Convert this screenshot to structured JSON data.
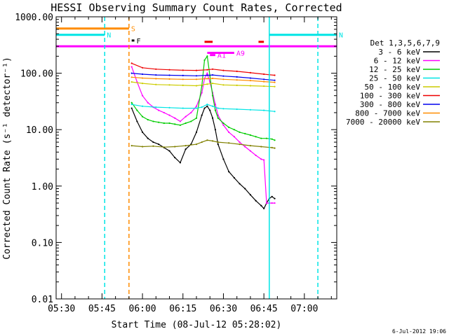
{
  "chart_data": {
    "type": "line",
    "title": "HESSI Observing Summary Count Rates, Corrected",
    "xlabel": "Start Time (08-Jul-12 05:28:02)",
    "ylabel": "Corrected Count Rate (s⁻¹ detector⁻¹)",
    "date_stamp": "6-Jul-2012 19:06",
    "yscale": "log",
    "ylim": [
      0.01,
      1000
    ],
    "xlim": [
      "05:28",
      "07:12"
    ],
    "x_ticks": [
      "05:30",
      "05:45",
      "06:00",
      "06:15",
      "06:30",
      "06:45",
      "07:00"
    ],
    "y_ticks": [
      "0.01",
      "0.10",
      "1.00",
      "10.00",
      "100.00",
      "1000.00"
    ],
    "legend_title": "Det 1,3,5,6,7,9",
    "legend_position": "right",
    "series": [
      {
        "name": "3 - 6 keV",
        "color": "#000000",
        "x": [
          "05:56",
          "05:58",
          "06:00",
          "06:02",
          "06:04",
          "06:06",
          "06:08",
          "06:10",
          "06:12",
          "06:14",
          "06:16",
          "06:18",
          "06:20",
          "06:22",
          "06:23",
          "06:24",
          "06:25",
          "06:26",
          "06:27",
          "06:28",
          "06:30",
          "06:32",
          "06:34",
          "06:36",
          "06:38",
          "06:40",
          "06:42",
          "06:44",
          "06:45",
          "06:46",
          "06:47",
          "06:48",
          "06:49"
        ],
        "y": [
          24,
          14,
          9,
          7,
          6,
          5.5,
          4.8,
          4.2,
          3.2,
          2.6,
          4.5,
          5.5,
          9,
          18,
          24,
          26,
          22,
          16,
          10,
          5.5,
          3,
          1.8,
          1.4,
          1.1,
          0.9,
          0.7,
          0.55,
          0.45,
          0.4,
          0.5,
          0.6,
          0.65,
          0.6
        ]
      },
      {
        "name": "6 - 12 keV",
        "color": "#ff00ff",
        "x": [
          "05:56",
          "05:58",
          "06:00",
          "06:02",
          "06:04",
          "06:06",
          "06:08",
          "06:10",
          "06:12",
          "06:14",
          "06:16",
          "06:18",
          "06:20",
          "06:22",
          "06:23",
          "06:24",
          "06:25",
          "06:26",
          "06:27",
          "06:28",
          "06:30",
          "06:32",
          "06:34",
          "06:36",
          "06:38",
          "06:40",
          "06:42",
          "06:44",
          "06:45",
          "06:46",
          "06:47",
          "06:48",
          "06:49"
        ],
        "y": [
          130,
          70,
          40,
          30,
          25,
          22,
          20,
          18,
          16,
          14,
          17,
          20,
          26,
          45,
          80,
          100,
          70,
          45,
          28,
          18,
          12,
          9,
          7.5,
          6,
          5,
          4.2,
          3.5,
          3,
          2.9,
          0.5,
          0.5,
          0.5,
          0.5
        ]
      },
      {
        "name": "12 - 25 keV",
        "color": "#00cc00",
        "x": [
          "05:56",
          "05:58",
          "06:00",
          "06:02",
          "06:04",
          "06:06",
          "06:08",
          "06:10",
          "06:12",
          "06:14",
          "06:16",
          "06:18",
          "06:20",
          "06:22",
          "06:23",
          "06:24",
          "06:25",
          "06:26",
          "06:27",
          "06:28",
          "06:30",
          "06:32",
          "06:34",
          "06:36",
          "06:38",
          "06:40",
          "06:42",
          "06:44",
          "06:46",
          "06:48",
          "06:49"
        ],
        "y": [
          30,
          22,
          17,
          15,
          14,
          13.5,
          13,
          13,
          12.5,
          12,
          13,
          14,
          16,
          60,
          170,
          200,
          90,
          40,
          22,
          16,
          13,
          11,
          10,
          9,
          8.5,
          8,
          7.5,
          7,
          7,
          6.8,
          6.5
        ]
      },
      {
        "name": "25 - 50 keV",
        "color": "#00e5e5",
        "x": [
          "05:56",
          "06:00",
          "06:05",
          "06:10",
          "06:15",
          "06:20",
          "06:22",
          "06:24",
          "06:26",
          "06:28",
          "06:30",
          "06:35",
          "06:40",
          "06:45",
          "06:49"
        ],
        "y": [
          28,
          26,
          25,
          24.5,
          24,
          24,
          25,
          28,
          26,
          24,
          23.5,
          23,
          22.5,
          22,
          21
        ]
      },
      {
        "name": "50 - 100 keV",
        "color": "#cccc00",
        "x": [
          "05:56",
          "06:00",
          "06:05",
          "06:10",
          "06:15",
          "06:20",
          "06:24",
          "06:26",
          "06:30",
          "06:35",
          "06:40",
          "06:45",
          "06:49"
        ],
        "y": [
          70,
          66,
          63,
          62,
          61,
          60,
          64,
          66,
          62,
          61,
          60,
          59,
          58
        ]
      },
      {
        "name": "100 - 300 keV",
        "color": "#ee0000",
        "x": [
          "05:56",
          "06:00",
          "06:05",
          "06:10",
          "06:15",
          "06:20",
          "06:24",
          "06:26",
          "06:30",
          "06:35",
          "06:40",
          "06:45",
          "06:49"
        ],
        "y": [
          150,
          125,
          118,
          115,
          113,
          112,
          115,
          118,
          112,
          108,
          102,
          96,
          92
        ]
      },
      {
        "name": "300 - 800 keV",
        "color": "#0000ee",
        "x": [
          "05:56",
          "06:00",
          "06:05",
          "06:10",
          "06:15",
          "06:20",
          "06:24",
          "06:26",
          "06:30",
          "06:35",
          "06:40",
          "06:45",
          "06:49"
        ],
        "y": [
          100,
          96,
          93,
          92,
          91,
          90,
          92,
          93,
          89,
          86,
          82,
          78,
          75
        ]
      },
      {
        "name": "800 - 7000 keV",
        "color": "#ff8c00",
        "x": [
          "05:56",
          "06:00",
          "06:05",
          "06:10",
          "06:15",
          "06:20",
          "06:24",
          "06:26",
          "06:30",
          "06:35",
          "06:40",
          "06:45",
          "06:49"
        ],
        "y": [
          85,
          82,
          80,
          79,
          78,
          78,
          80,
          81,
          78,
          76,
          74,
          71,
          69
        ]
      },
      {
        "name": "7000 - 20000 keV",
        "color": "#808000",
        "x": [
          "05:56",
          "06:00",
          "06:04",
          "06:08",
          "06:12",
          "06:16",
          "06:20",
          "06:22",
          "06:24",
          "06:26",
          "06:28",
          "06:32",
          "06:36",
          "06:40",
          "06:44",
          "06:48",
          "06:49"
        ],
        "y": [
          5.2,
          5,
          5.1,
          4.9,
          5,
          5.2,
          5.5,
          6,
          6.5,
          6.3,
          6,
          5.8,
          5.5,
          5.2,
          5,
          4.8,
          4.7
        ]
      }
    ],
    "flag_bars": [
      {
        "label": "S",
        "color": "#ff8c00",
        "start": "05:28",
        "end": "05:55",
        "level": 620
      },
      {
        "label": "N",
        "color": "#00e5e5",
        "start": "05:28",
        "end": "05:46",
        "level": 480
      },
      {
        "label": "N",
        "color": "#00e5e5",
        "start": "06:47",
        "end": "07:12",
        "level": 480
      },
      {
        "label": "F",
        "color": "#000000",
        "start": "05:56",
        "end": "05:57",
        "level": 380
      },
      {
        "label": "A9",
        "color": "#ff00ff",
        "start": "06:24",
        "end": "06:34",
        "level": 230
      },
      {
        "label": "A1",
        "color": "#ff00ff",
        "start": "06:25",
        "end": "06:27",
        "level": 210
      },
      {
        "label": "",
        "color": "#ee0000",
        "start": "06:23",
        "end": "06:26",
        "level": 360
      },
      {
        "label": "",
        "color": "#ee0000",
        "start": "06:43",
        "end": "06:45",
        "level": 360
      },
      {
        "label": "",
        "color": "#ff00ff",
        "start": "05:28",
        "end": "07:12",
        "level": 300
      }
    ],
    "vertical_markers": [
      {
        "time": "05:46",
        "color": "#00e5e5",
        "style": "dashed"
      },
      {
        "time": "05:55",
        "color": "#ff8c00",
        "style": "dashed"
      },
      {
        "time": "06:47",
        "color": "#00e5e5",
        "style": "solid"
      },
      {
        "time": "07:05",
        "color": "#00e5e5",
        "style": "dashed"
      }
    ]
  }
}
